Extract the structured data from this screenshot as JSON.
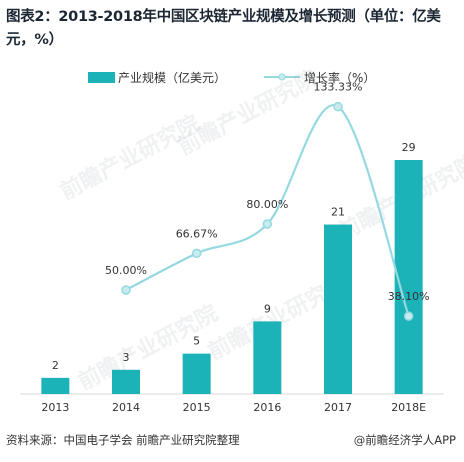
{
  "title": "图表2：2013-2018年中国区块链产业规模及增长预测（单位：亿美元，%）",
  "legend": {
    "bar_label": "产业规模（亿美元）",
    "line_label": "增长率（%）"
  },
  "colors": {
    "bar": "#1bb2b8",
    "line": "#95d9e0",
    "line_marker": "#c8ebee"
  },
  "watermark": "前瞻产业研究院",
  "footer": {
    "source": "资料来源：中国电子学会  前瞻产业研究院整理",
    "brand": "@前瞻经济学人APP"
  },
  "chart_data": {
    "type": "bar",
    "categories": [
      "2013",
      "2014",
      "2015",
      "2016",
      "2017",
      "2018E"
    ],
    "series": [
      {
        "name": "产业规模（亿美元）",
        "type": "bar",
        "values": [
          2,
          3,
          5,
          9,
          21,
          29
        ],
        "labels": [
          "2",
          "3",
          "5",
          "9",
          "21",
          "29"
        ]
      },
      {
        "name": "增长率（%）",
        "type": "line",
        "smooth": true,
        "values": [
          null,
          50.0,
          66.67,
          80.0,
          133.33,
          38.1
        ],
        "labels": [
          "",
          "50.00%",
          "66.67%",
          "80.00%",
          "133.33%",
          "38.10%"
        ]
      }
    ],
    "legend_position": "top",
    "grid": false
  }
}
